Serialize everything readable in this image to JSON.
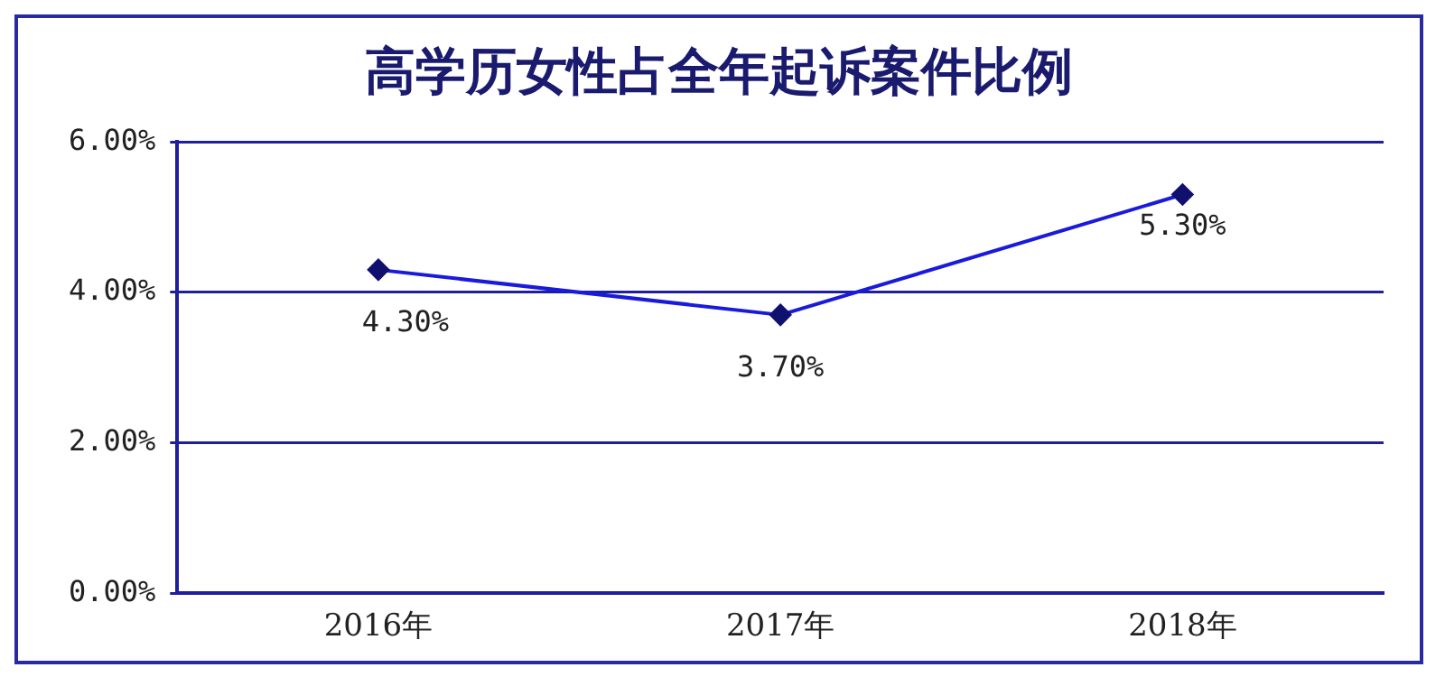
{
  "chart_data": {
    "type": "line",
    "title": "高学历女性占全年起诉案件比例",
    "categories": [
      "2016年",
      "2017年",
      "2018年"
    ],
    "series": [
      {
        "color": "#1a1adc",
        "values": [
          4.3,
          3.7,
          5.3
        ],
        "value_labels": [
          "4.30%",
          "3.70%",
          "5.30%"
        ]
      }
    ],
    "ylim": [
      0,
      6
    ],
    "yticks": [
      {
        "value": 0,
        "label": "0.00%"
      },
      {
        "value": 2,
        "label": "2.00%"
      },
      {
        "value": 4,
        "label": "4.00%"
      },
      {
        "value": 6,
        "label": "6.00%"
      }
    ],
    "grid": "y",
    "legend": false,
    "marker": "diamond",
    "line_style": "solid"
  }
}
